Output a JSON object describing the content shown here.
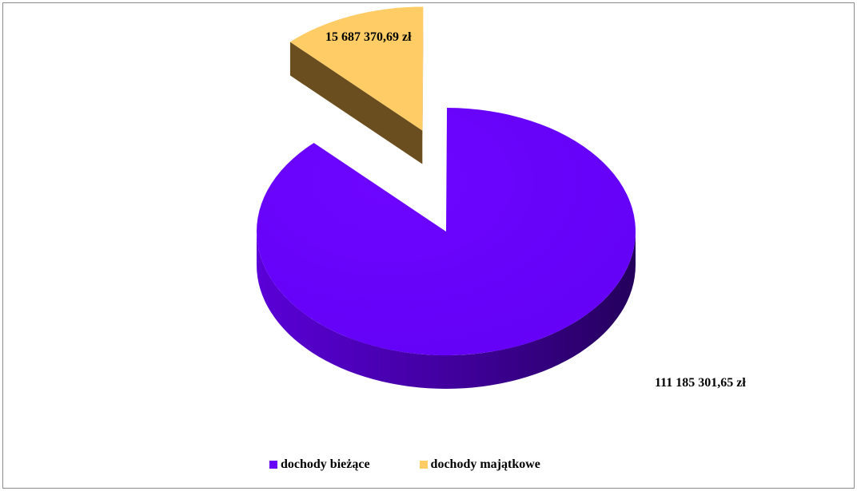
{
  "chart_data": {
    "type": "pie",
    "three_d": true,
    "exploded": "dochody majątkowe",
    "categories": [
      "dochody bieżące",
      "dochody majątkowe"
    ],
    "values": [
      111185301.65,
      15687370.69
    ],
    "value_labels": [
      "111 185 301,65 zł",
      "15 687 370,69 zł"
    ],
    "colors": [
      "#6600ff",
      "#ffcc66"
    ],
    "legend_position": "bottom",
    "title": ""
  }
}
